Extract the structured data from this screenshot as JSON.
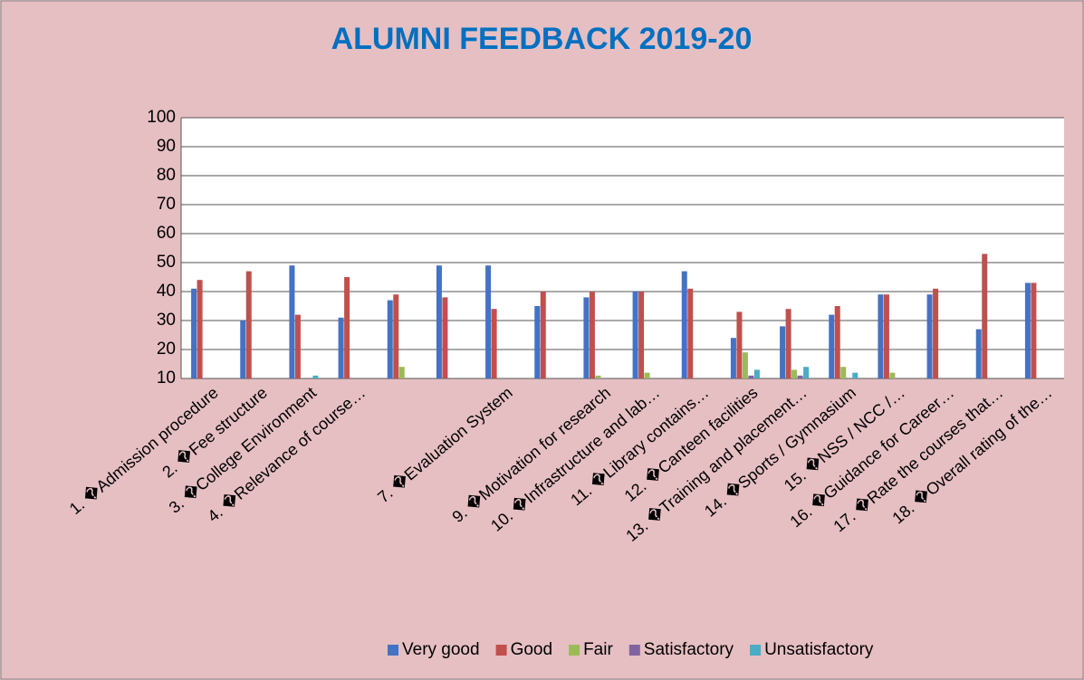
{
  "chart_data": {
    "type": "bar",
    "title": "ALUMNI FEEDBACK 2019-20",
    "categories": [
      "1. �Admission procedure",
      "2. �Fee structure",
      "3. �College Environment",
      "4. �Relevance of course…",
      null,
      null,
      "7. �Evaluation System",
      null,
      "9. �Motivation for research",
      "10. �Infrastructure and lab…",
      "11. �Library contains…",
      "12. �Canteen facilities",
      "13. �Training and placement…",
      "14. �Sports / Gymnasium",
      "15. �NSS / NCC /…",
      "16. �Guidance for Career…",
      "17. �Rate the courses that…",
      "18. �Overall rating of the…"
    ],
    "series": [
      {
        "name": "Very good",
        "color": "#4472c4",
        "values": [
          41,
          30,
          49,
          31,
          37,
          49,
          49,
          35,
          38,
          40,
          47,
          24,
          28,
          32,
          39,
          39,
          27,
          43
        ]
      },
      {
        "name": "Good",
        "color": "#c0504d",
        "values": [
          44,
          47,
          32,
          45,
          39,
          38,
          34,
          40,
          40,
          40,
          41,
          33,
          34,
          35,
          39,
          41,
          53,
          43
        ]
      },
      {
        "name": "Fair",
        "color": "#9bbb59",
        "values": [
          10,
          10,
          10,
          10,
          14,
          10,
          10,
          10,
          11,
          12,
          10,
          19,
          13,
          14,
          12,
          10,
          10,
          10
        ]
      },
      {
        "name": "Satisfactory",
        "color": "#8064a2",
        "values": [
          10,
          10,
          10,
          10,
          10,
          10,
          10,
          10,
          10,
          10,
          10,
          11,
          11,
          10,
          10,
          10,
          10,
          10
        ]
      },
      {
        "name": "Unsatisfactory",
        "color": "#4bacc6",
        "values": [
          10,
          10,
          11,
          10,
          10,
          10,
          10,
          10,
          10,
          10,
          10,
          13,
          14,
          12,
          10,
          10,
          10,
          10
        ]
      }
    ],
    "ylim": [
      10,
      100
    ],
    "yticks": [
      10,
      20,
      30,
      40,
      50,
      60,
      70,
      80,
      90,
      100
    ],
    "grid": true,
    "legend": "bottom"
  }
}
